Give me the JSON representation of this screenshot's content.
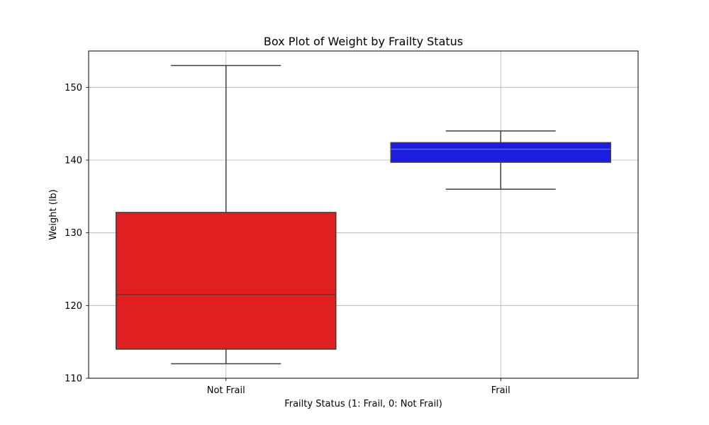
{
  "chart_data": {
    "type": "box",
    "title": "Box Plot of Weight by Frailty Status",
    "xlabel": "Frailty Status (1: Frail, 0: Not Frail)",
    "ylabel": "Weight (lb)",
    "ylim": [
      110,
      155
    ],
    "yticks": [
      110,
      120,
      130,
      140,
      150
    ],
    "grid": true,
    "categories": [
      "Not Frail",
      "Frail"
    ],
    "boxes": [
      {
        "category": "Not Frail",
        "whisker_low": 112,
        "q1": 114,
        "median": 121.5,
        "q3": 132.8,
        "whisker_high": 153,
        "color": "#e02020",
        "median_color": "#3f3f3f"
      },
      {
        "category": "Frail",
        "whisker_low": 136,
        "q1": 139.7,
        "median": 141.5,
        "q3": 142.4,
        "whisker_high": 144,
        "color": "#1d1ddf",
        "median_color": "#4a6bff"
      }
    ]
  }
}
